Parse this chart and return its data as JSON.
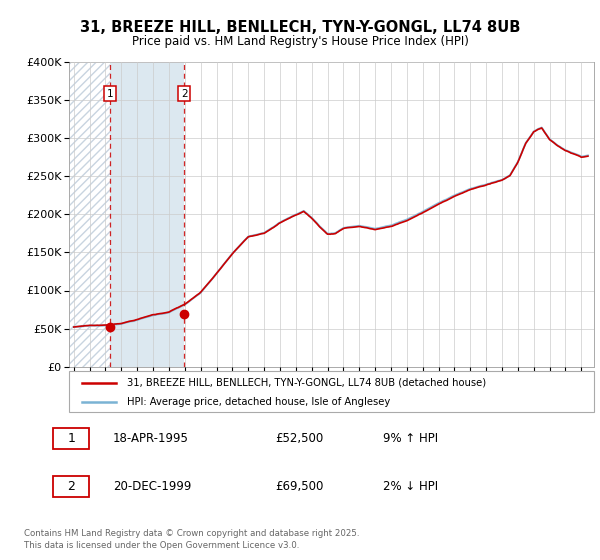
{
  "title": "31, BREEZE HILL, BENLLECH, TYN-Y-GONGL, LL74 8UB",
  "subtitle": "Price paid vs. HM Land Registry's House Price Index (HPI)",
  "legend_line1": "31, BREEZE HILL, BENLLECH, TYN-Y-GONGL, LL74 8UB (detached house)",
  "legend_line2": "HPI: Average price, detached house, Isle of Anglesey",
  "footnote": "Contains HM Land Registry data © Crown copyright and database right 2025.\nThis data is licensed under the Open Government Licence v3.0.",
  "sale1_label": "1",
  "sale1_date": "18-APR-1995",
  "sale1_price": "£52,500",
  "sale1_hpi": "9% ↑ HPI",
  "sale2_label": "2",
  "sale2_date": "20-DEC-1999",
  "sale2_price": "£69,500",
  "sale2_hpi": "2% ↓ HPI",
  "sale1_year": 1995.29,
  "sale1_value": 52500,
  "sale2_year": 1999.97,
  "sale2_value": 69500,
  "hpi_color": "#7ab3d4",
  "price_color": "#cc0000",
  "dashed_color": "#cc0000",
  "ylim": [
    0,
    400000
  ],
  "xlim_start": 1992.7,
  "xlim_end": 2025.8
}
